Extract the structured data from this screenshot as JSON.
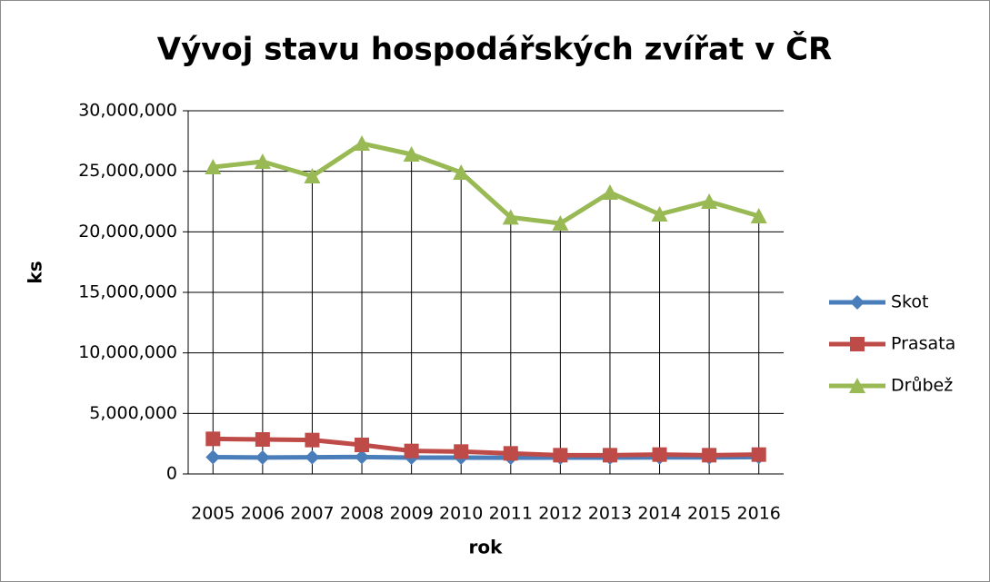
{
  "chart_data": {
    "type": "line",
    "title": "Vývoj stavu hospodářských zvířat v ČR",
    "x_label": "rok",
    "y_label": "ks",
    "categories": [
      "2005",
      "2006",
      "2007",
      "2008",
      "2009",
      "2010",
      "2011",
      "2012",
      "2013",
      "2014",
      "2015",
      "2016"
    ],
    "series": [
      {
        "name": "Skot",
        "color": "#4a7ebb",
        "marker": "diamond",
        "values": [
          1390000,
          1360000,
          1380000,
          1400000,
          1350000,
          1350000,
          1340000,
          1350000,
          1350000,
          1370000,
          1370000,
          1400000
        ]
      },
      {
        "name": "Prasata",
        "color": "#be4b48",
        "marker": "square",
        "values": [
          2900000,
          2850000,
          2800000,
          2400000,
          1900000,
          1850000,
          1700000,
          1550000,
          1550000,
          1600000,
          1550000,
          1600000
        ]
      },
      {
        "name": "Drůbež",
        "color": "#98b954",
        "marker": "triangle",
        "values": [
          25350000,
          25800000,
          24600000,
          27300000,
          26400000,
          24900000,
          21200000,
          20700000,
          23250000,
          21450000,
          22500000,
          21300000
        ]
      }
    ],
    "ylim": [
      0,
      30000000
    ],
    "yticks": [
      0,
      {
        "value": 5000000,
        "label": "5,000,000"
      },
      {
        "value": 10000000,
        "label": "10,000,000"
      },
      {
        "value": 15000000,
        "label": "15,000,000"
      },
      {
        "value": 20000000,
        "label": "20,000,000"
      },
      {
        "value": 25000000,
        "label": "25,000,000"
      },
      {
        "value": 30000000,
        "label": "30,000,000"
      }
    ],
    "grid": true,
    "drop_lines": true,
    "legend": "right"
  }
}
